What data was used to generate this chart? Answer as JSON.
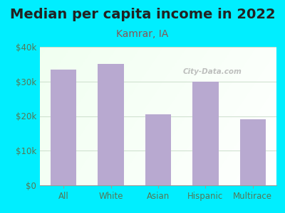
{
  "title": "Median per capita income in 2022",
  "subtitle": "Kamrar, IA",
  "categories": [
    "All",
    "White",
    "Asian",
    "Hispanic",
    "Multirace"
  ],
  "values": [
    33500,
    35000,
    20500,
    30000,
    19000
  ],
  "bar_color": "#b8a9d0",
  "background_outer": "#00eeff",
  "title_color": "#222222",
  "subtitle_color": "#885555",
  "tick_color": "#557755",
  "xlabel_color": "#557755",
  "ylim": [
    0,
    40000
  ],
  "yticks": [
    0,
    10000,
    20000,
    30000,
    40000
  ],
  "ytick_labels": [
    "$0",
    "$10k",
    "$20k",
    "$30k",
    "$40k"
  ],
  "title_fontsize": 14,
  "subtitle_fontsize": 10,
  "watermark": "City-Data.com",
  "grid_color": "#ccddcc"
}
